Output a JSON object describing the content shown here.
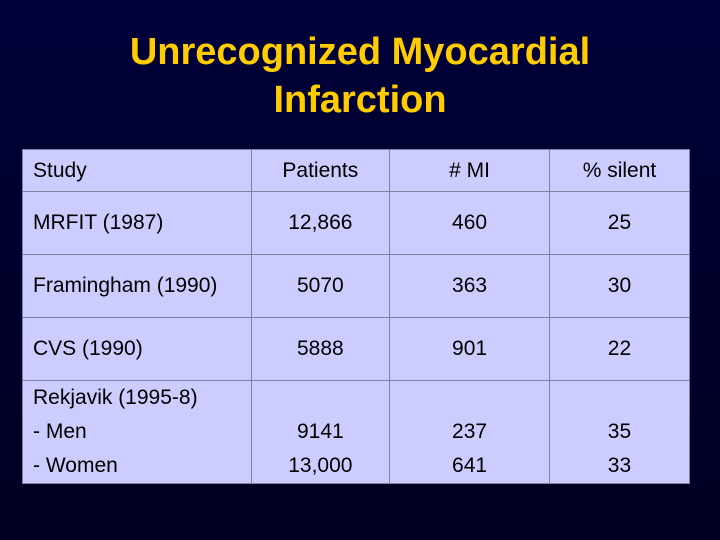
{
  "title": {
    "line1": "Unrecognized Myocardial",
    "line2": "Infarction"
  },
  "table": {
    "headers": [
      "Study",
      "Patients",
      "# MI",
      "% silent"
    ],
    "rows": [
      {
        "study": "MRFIT (1987)",
        "patients": "12,866",
        "mi": "460",
        "silent": "25"
      },
      {
        "study": "Framingham (1990)",
        "patients": "5070",
        "mi": "363",
        "silent": "30"
      },
      {
        "study": "CVS (1990)",
        "patients": "5888",
        "mi": "901",
        "silent": "22"
      }
    ],
    "rekjavik": {
      "study_lines": [
        "Rekjavik (1995-8)",
        "- Men",
        "- Women"
      ],
      "patients": [
        "9141",
        "13,000"
      ],
      "mi": [
        "237",
        "641"
      ],
      "silent": [
        "35",
        "33"
      ]
    }
  },
  "colors": {
    "background": "#000030",
    "title": "#ffcc00",
    "table_fill": "#ccccff"
  }
}
